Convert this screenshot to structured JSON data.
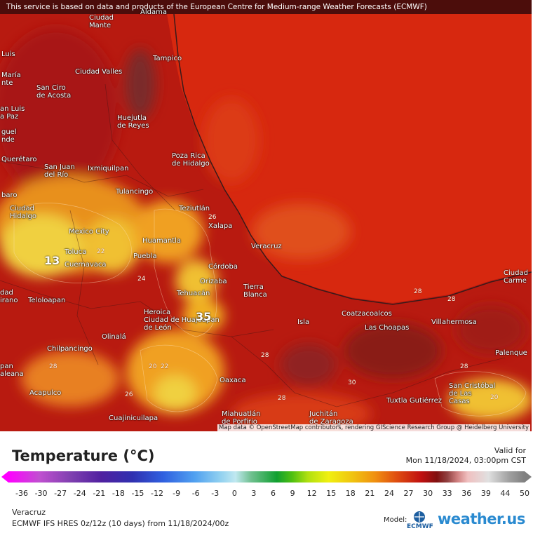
{
  "banner": "This service is based on data and products of the European Centre for Medium-range Weather Forecasts (ECMWF)",
  "map": {
    "places": [
      "Aldama",
      "Ciudad\nMante",
      "Tampico",
      "Luis",
      "María\nnte",
      "Ciudad Valles",
      "San Ciro\nde Acosta",
      "an Luis\na Paz",
      "Huejutla\nde Reyes",
      "guel\nnde",
      "Querétaro",
      "Poza Rica\nde Hidalgo",
      "San Juan\ndel Río",
      "Ixmiquilpan",
      "Tulancingo",
      "baro",
      "Teziutlán",
      "Ciudad\nHidalgo",
      "Mexico City",
      "Xalapa",
      "Huamantla",
      "Veracruz",
      "Toluca",
      "Puebla",
      "Cuernavaca",
      "Córdoba",
      "Orizaba",
      "Tierra\nBlanca",
      "Tehuacán",
      "dad\nirano",
      "Teloloapan",
      "Heroica\nCiudad de Huajuapan\nde León",
      "Coatzacoalcos",
      "Isla",
      "Las Choapas",
      "Villahermosa",
      "Ciudad\nCarme",
      "Olinalá",
      "Palenque",
      "Chilpancingo",
      "pan\naleana",
      "Oaxaca",
      "San Cristóbal\nde Las\nCasas",
      "Acapulco",
      "Tuxtla Gutiérrez",
      "Juchitán\nde Zaragoza",
      "Miahuatlán\nde Porfirio",
      "Cuajinicuilapa"
    ],
    "big_labels": [
      13,
      35
    ],
    "contour_labels": [
      26,
      22,
      24,
      28,
      20,
      22,
      28,
      26,
      30,
      28,
      28,
      28,
      28,
      20
    ],
    "attribution": "Map data © OpenStreetMap contributors, rendering GIScience Research Group @ Heidelberg University"
  },
  "legend": {
    "title": "Temperature (°C)",
    "valid_label": "Valid for",
    "valid_time": "Mon 11/18/2024, 03:00pm CST",
    "ticks": [
      -36,
      -30,
      -27,
      -24,
      -21,
      -18,
      -15,
      -12,
      -9,
      -6,
      -3,
      0,
      3,
      6,
      9,
      12,
      15,
      18,
      21,
      24,
      27,
      30,
      33,
      36,
      39,
      44,
      50
    ]
  },
  "footer": {
    "location": "Veracruz",
    "model_run": "ECMWF IFS HRES 0z/12z (10 days) from 11/18/2024/00z",
    "model_label": "Model:",
    "model_logo": "ECMWF",
    "brand": "weather.us"
  }
}
